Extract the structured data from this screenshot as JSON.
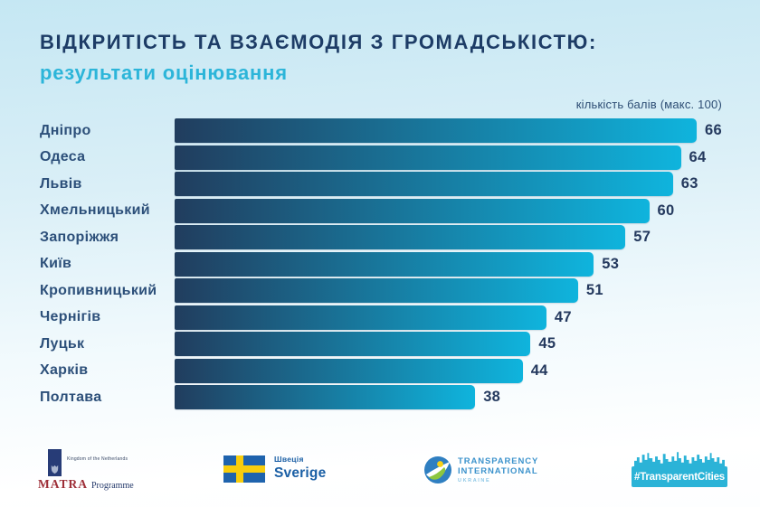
{
  "header": {
    "title": "ВІДКРИТІСТЬ ТА ВЗАЄМОДІЯ З ГРОМАДСЬКІСТЮ:",
    "subtitle": "результати оцінювання"
  },
  "chart_data": {
    "type": "bar",
    "orientation": "horizontal",
    "title": "ВІДКРИТІСТЬ ТА ВЗАЄМОДІЯ З ГРОМАДСЬКІСТЮ: результати оцінювання",
    "axis_note": "кількість балів (макс. 100)",
    "max_score": 100,
    "categories": [
      "Дніпро",
      "Одеса",
      "Львів",
      "Хмельницький",
      "Запоріжжя",
      "Київ",
      "Кропивницький",
      "Чернігів",
      "Луцьк",
      "Харків",
      "Полтава"
    ],
    "values": [
      66,
      64,
      63,
      60,
      57,
      53,
      51,
      47,
      45,
      44,
      38
    ],
    "bar_colors": [
      "#213d5e",
      "#0fb4dd"
    ],
    "value_label_color": "#24395e",
    "legend": "none",
    "grid": false
  },
  "colors": {
    "background_top": "#c5e7f3",
    "background_bottom": "#ffffff",
    "title_navy": "#1d3c66",
    "accent_cyan": "#2cb5d9",
    "city_label": "#2d507a"
  },
  "footer": {
    "matra": {
      "country": "Kingdom of the Netherlands",
      "program": "MATRA",
      "program_suffix": "Programme"
    },
    "sweden": {
      "line1": "Швеція",
      "line2": "Sverige"
    },
    "ti": {
      "line1": "TRANSPARENCY",
      "line2": "INTERNATIONAL",
      "line3": "UKRAINE"
    },
    "transparent_cities": {
      "label": "#TransparentCities"
    }
  }
}
